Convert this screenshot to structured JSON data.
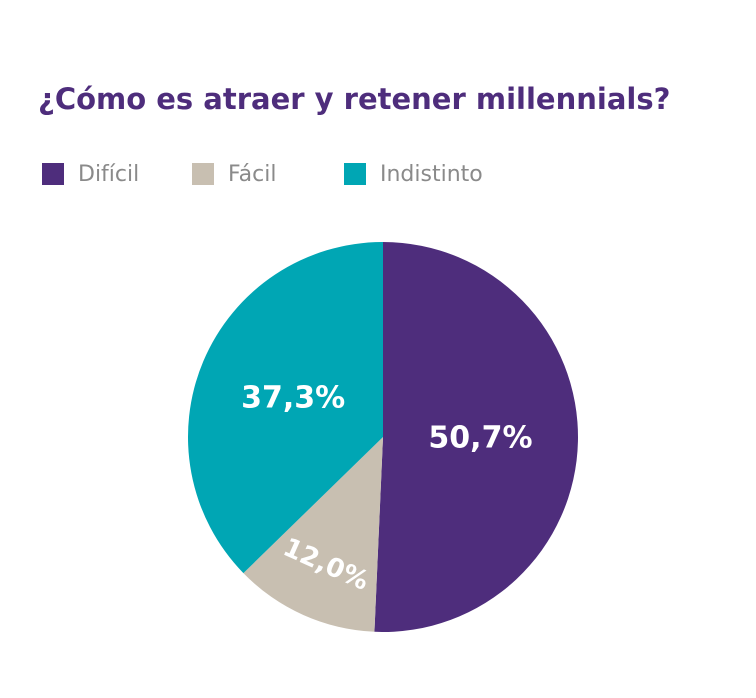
{
  "chart_data": {
    "type": "pie",
    "title": "¿Cómo es atraer y retener millennials?",
    "categories": [
      "Difícil",
      "Fácil",
      "Indistinto"
    ],
    "values": [
      50.7,
      12.0,
      37.3
    ],
    "value_labels": [
      "50,7%",
      "12,0%",
      "37,3%"
    ],
    "colors": [
      "#4e2d7c",
      "#c8bfb1",
      "#00a6b4"
    ]
  }
}
